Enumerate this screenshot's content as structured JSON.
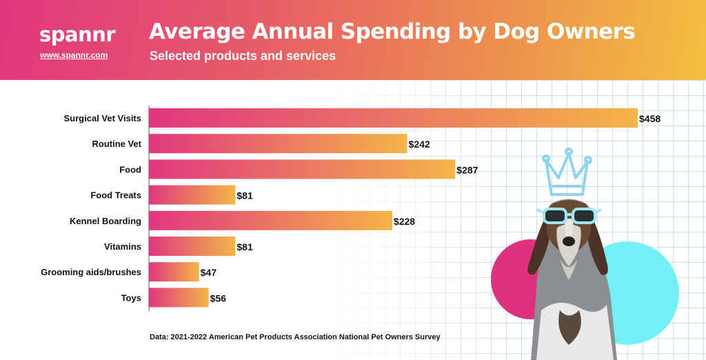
{
  "brand": {
    "logo": "spannr",
    "url": "www.spannr.com"
  },
  "chart_data": {
    "type": "bar",
    "orientation": "horizontal",
    "title": "Average Annual Spending by Dog Owners",
    "subtitle": "Selected products and services",
    "categories": [
      "Surgical Vet Visits",
      "Routine Vet",
      "Food",
      "Food Treats",
      "Kennel Boarding",
      "Vitamins",
      "Grooming aids/brushes",
      "Toys"
    ],
    "values": [
      458,
      242,
      287,
      81,
      228,
      81,
      47,
      56
    ],
    "data_labels": [
      "$458",
      "$242",
      "$287",
      "$81",
      "$228",
      "$81",
      "$47",
      "$56"
    ],
    "xlabel": "",
    "ylabel": "",
    "xlim": [
      0,
      458
    ],
    "grid": false,
    "legend": "none",
    "bar_gradient": [
      "#e0377e",
      "#f4b548"
    ]
  },
  "source": "Data: 2021-2022 American Pet Products Association National Pet Owners Survey",
  "illustration": {
    "subject": "dog-with-sunglasses-and-crown",
    "circle_colors": [
      "#e0317f",
      "#72f0f5"
    ],
    "crown_color": "#8fd3f0"
  }
}
